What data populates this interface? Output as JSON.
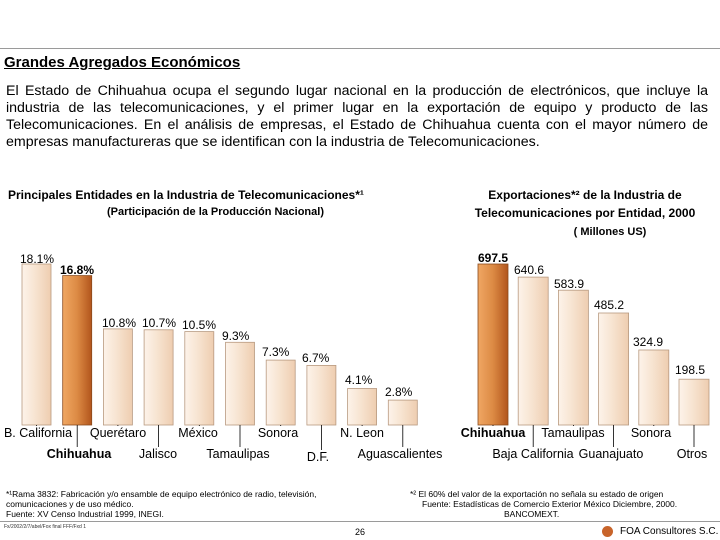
{
  "heading": "Grandes Agregados Económicos",
  "paragraph": "El Estado de Chihuahua ocupa el segundo lugar nacional en la producción de electrónicos, que incluye la industria de las telecomunicaciones, y el primer lugar en la exportación de equipo y producto de las Telecomunicaciones. En el análisis de empresas, el Estado de Chihuahua cuenta con el mayor número de empresas manufactureras que se identifican con la industria de Telecomunicaciones.",
  "chart_data": [
    {
      "type": "bar",
      "title": "Principales Entidades en la Industria de Telecomunicaciones*¹",
      "subtitle": "(Participación de la Producción Nacional)",
      "categories": [
        "B. California",
        "Chihuahua",
        "Querétaro",
        "Jalisco",
        "México",
        "Tamaulipas",
        "Sonora",
        "D.F.",
        "N. Leon",
        "Aguascalientes"
      ],
      "values": [
        18.1,
        16.8,
        10.8,
        10.7,
        10.5,
        9.3,
        7.3,
        6.7,
        4.1,
        2.8
      ],
      "data_labels": [
        "18.1%",
        "16.8%",
        "10.8%",
        "10.7%",
        "10.5%",
        "9.3%",
        "7.3%",
        "6.7%",
        "4.1%",
        "2.8%"
      ],
      "highlight_index": 1,
      "ylim": [
        0,
        18.1
      ]
    },
    {
      "type": "bar",
      "title": "Exportaciones*² de la Industria de Telecomunicaciones por Entidad, 2000",
      "subtitle": "( Millones US)",
      "categories": [
        "Chihuahua",
        "Baja California",
        "Tamaulipas",
        "Guanajuato",
        "Sonora",
        "Otros"
      ],
      "values": [
        697.5,
        640.6,
        583.9,
        485.2,
        324.9,
        198.5
      ],
      "data_labels": [
        "697.5",
        "640.6",
        "583.9",
        "485.2",
        "324.9",
        "198.5"
      ],
      "highlight_index": 0,
      "ylim": [
        0,
        697.5
      ]
    }
  ],
  "chart1_title": "Principales Entidades en la Industria de Telecomunicaciones*¹",
  "chart2_title_line1": "Exportaciones*² de la Industria de",
  "chart2_title_line2": "Telecomunicaciones por Entidad, 2000",
  "footnote1": [
    "*¹Rama 3832: Fabricación y/o ensamble de equipo electrónico de radio, televisión,",
    "comunicaciones y de uso médico.",
    "Fuente: XV Censo Industrial 1999, INEGI."
  ],
  "footnote2": [
    "*² El 60% del valor de la exportación no señala su estado de origen",
    "Fuente: Estadísticas de Comercio Exterior México Diciembre, 2000.",
    "BANCOMEXT."
  ],
  "footer_path": "Fx/2002/2/7/abel/Fox final FFF/Fxd 1",
  "page_number": "26",
  "brand": "FOA Consultores S.C.",
  "colors": {
    "bar_base": "#f5dcc4",
    "bar_light": "#fdf3ea",
    "bar_highlight": "#dc8a44",
    "bar_highlight_dark": "#b2551c",
    "logo": "#c8642a"
  }
}
